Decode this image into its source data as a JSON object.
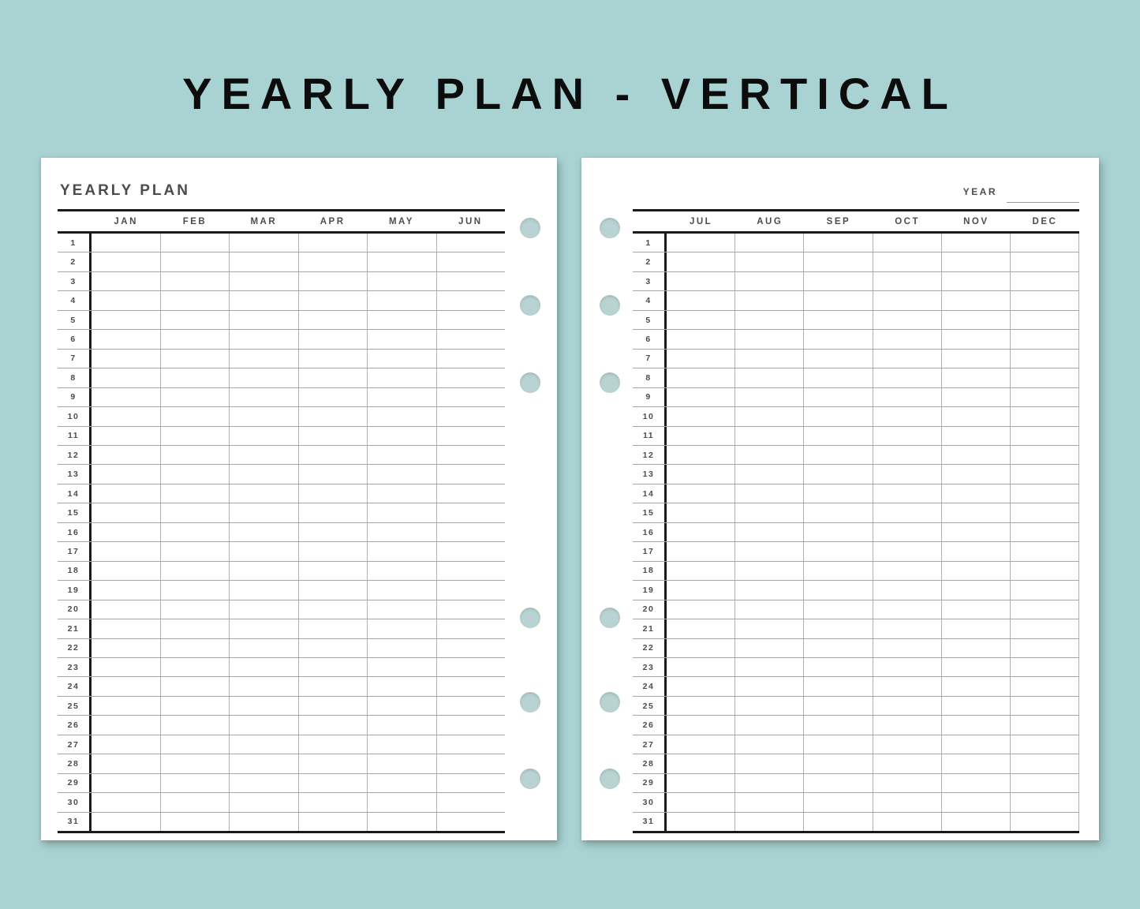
{
  "title": "YEARLY PLAN - VERTICAL",
  "left_page": {
    "heading": "YEARLY PLAN",
    "months": [
      "JAN",
      "FEB",
      "MAR",
      "APR",
      "MAY",
      "JUN"
    ],
    "days": [
      "1",
      "2",
      "3",
      "4",
      "5",
      "6",
      "7",
      "8",
      "9",
      "10",
      "11",
      "12",
      "13",
      "14",
      "15",
      "16",
      "17",
      "18",
      "19",
      "20",
      "21",
      "22",
      "23",
      "24",
      "25",
      "26",
      "27",
      "28",
      "29",
      "30",
      "31"
    ]
  },
  "right_page": {
    "year_label": "YEAR",
    "year_value": "",
    "months": [
      "JUL",
      "AUG",
      "SEP",
      "OCT",
      "NOV",
      "DEC"
    ],
    "days": [
      "1",
      "2",
      "3",
      "4",
      "5",
      "6",
      "7",
      "8",
      "9",
      "10",
      "11",
      "12",
      "13",
      "14",
      "15",
      "16",
      "17",
      "18",
      "19",
      "20",
      "21",
      "22",
      "23",
      "24",
      "25",
      "26",
      "27",
      "28",
      "29",
      "30",
      "31"
    ]
  },
  "colors": {
    "background": "#a9d2d2",
    "page": "#ffffff",
    "line_dark": "#1a1a1a",
    "line_light": "#a6a6a6",
    "text_gray": "#4c4c4c",
    "title_text": "#0c0c0c",
    "binder_hole": "#b9d3d2"
  }
}
